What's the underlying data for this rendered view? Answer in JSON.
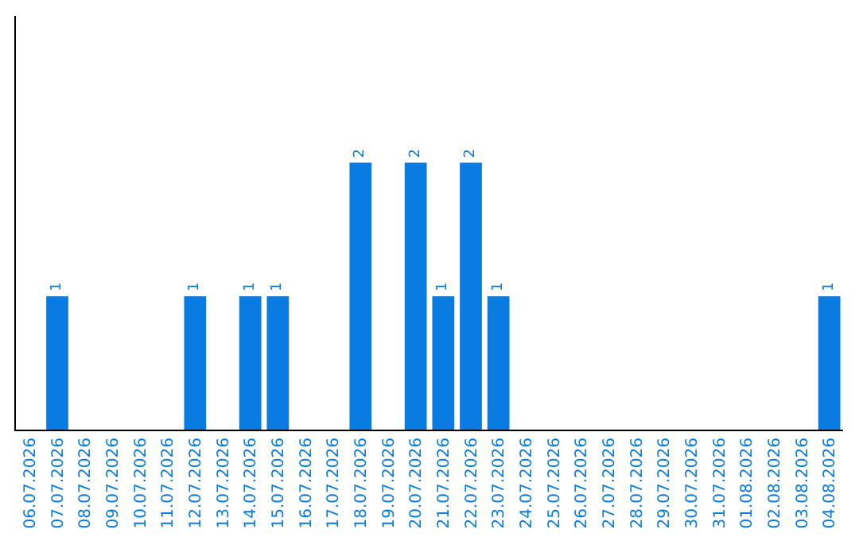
{
  "chart_data": {
    "type": "bar",
    "categories": [
      "06.07.2026",
      "07.07.2026",
      "08.07.2026",
      "09.07.2026",
      "10.07.2026",
      "11.07.2026",
      "12.07.2026",
      "13.07.2026",
      "14.07.2026",
      "15.07.2026",
      "16.07.2026",
      "17.07.2026",
      "18.07.2026",
      "19.07.2026",
      "20.07.2026",
      "21.07.2026",
      "22.07.2026",
      "23.07.2026",
      "24.07.2026",
      "25.07.2026",
      "26.07.2026",
      "27.07.2026",
      "28.07.2026",
      "29.07.2026",
      "30.07.2026",
      "31.07.2026",
      "01.08.2026",
      "02.08.2026",
      "03.08.2026",
      "04.08.2026"
    ],
    "values": [
      0,
      1,
      0,
      0,
      0,
      0,
      1,
      0,
      1,
      1,
      0,
      0,
      2,
      0,
      2,
      1,
      2,
      1,
      0,
      0,
      0,
      0,
      0,
      0,
      0,
      0,
      0,
      0,
      0,
      1
    ],
    "value_labels": [
      null,
      "1",
      null,
      null,
      null,
      null,
      "1",
      null,
      "1",
      "1",
      null,
      null,
      "2",
      null,
      "2",
      "1",
      "2",
      "1",
      null,
      null,
      null,
      null,
      null,
      null,
      null,
      null,
      null,
      null,
      null,
      "1"
    ],
    "color": "#0a7be0",
    "ylim": [
      0,
      3.1
    ],
    "tick_labels": "x",
    "grid": false,
    "legend": false
  }
}
